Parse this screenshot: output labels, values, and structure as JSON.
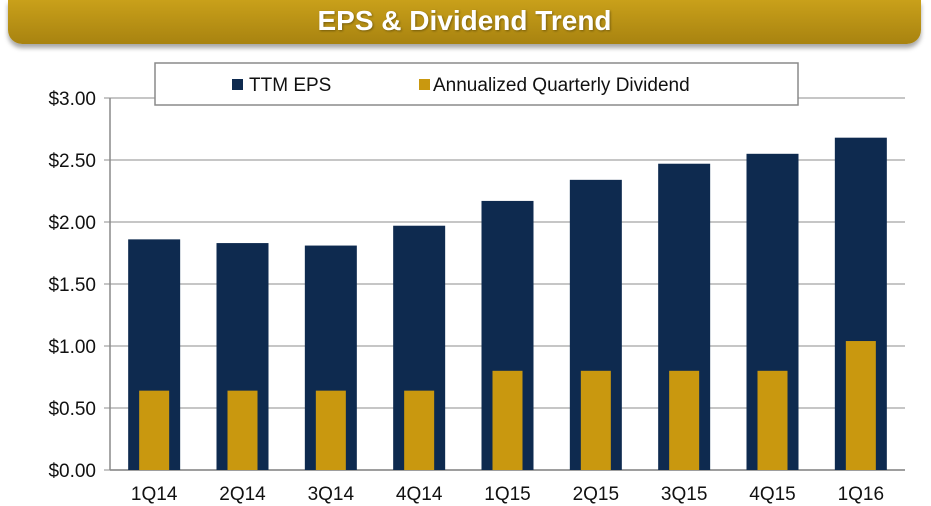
{
  "header": {
    "title": "EPS & Dividend Trend"
  },
  "colors": {
    "banner": "#c29a16",
    "eps": "#0e2a4f",
    "dividend": "#c9980f",
    "grid": "#b3b3b3"
  },
  "chart_data": {
    "type": "bar",
    "title": "EPS & Dividend Trend",
    "categories": [
      "1Q14",
      "2Q14",
      "3Q14",
      "4Q14",
      "1Q15",
      "2Q15",
      "3Q15",
      "4Q15",
      "1Q16"
    ],
    "series": [
      {
        "name": "TTM EPS",
        "color": "#0e2a4f",
        "values": [
          1.86,
          1.83,
          1.81,
          1.97,
          2.17,
          2.34,
          2.47,
          2.55,
          2.68
        ]
      },
      {
        "name": "Annualized Quarterly Dividend",
        "color": "#c9980f",
        "values": [
          0.64,
          0.64,
          0.64,
          0.64,
          0.8,
          0.8,
          0.8,
          0.8,
          1.04
        ]
      }
    ],
    "ylim": [
      0,
      3.0
    ],
    "yticks": [
      "$0.00",
      "$0.50",
      "$1.00",
      "$1.50",
      "$2.00",
      "$2.50",
      "$3.00"
    ],
    "grid": true,
    "legend": "top-center"
  }
}
